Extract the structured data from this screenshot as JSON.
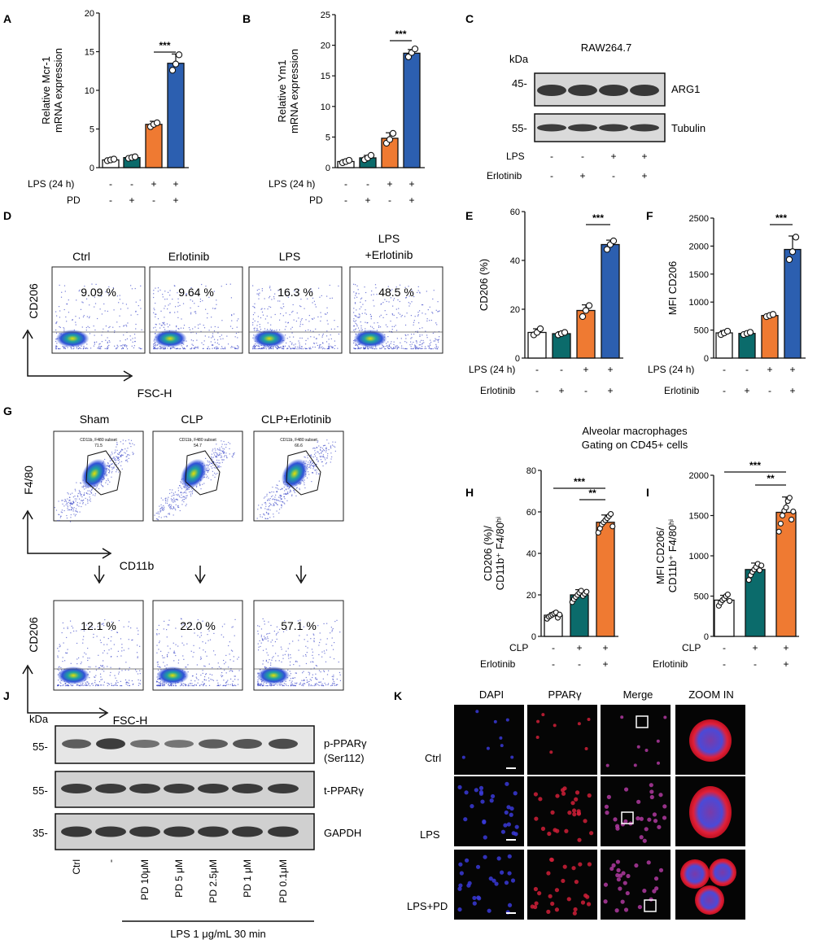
{
  "panel_letters": [
    "A",
    "B",
    "C",
    "D",
    "E",
    "F",
    "G",
    "H",
    "I",
    "J",
    "K"
  ],
  "colors": {
    "white_bar": "#ffffff",
    "teal": "#0b6b6b",
    "orange": "#ef7a32",
    "blue": "#2c5fb0",
    "blot_bg": "#d6d6d6",
    "band": "#2a2a2a",
    "flow_line": "#555555"
  },
  "condition_rows": {
    "lps24": "LPS (24 h)",
    "pd": "PD",
    "erlotinib": "Erlotinib",
    "cl_p": "CLP",
    "lps": "LPS",
    "signs_ab": [
      [
        "-",
        "-",
        "+",
        "+"
      ],
      [
        "-",
        "+",
        "-",
        "+"
      ]
    ],
    "signs_h": [
      [
        "-",
        "+",
        "+"
      ],
      [
        "-",
        "-",
        "+"
      ]
    ]
  },
  "panelC": {
    "kda": "kDa",
    "cell_line": "RAW264.7",
    "markers": [
      "45-",
      "55-"
    ],
    "bands": [
      "ARG1",
      "Tubulin"
    ]
  },
  "panelD": {
    "titles": [
      "Ctrl",
      "Erlotinib",
      "LPS",
      "LPS\n+Erlotinib"
    ],
    "title_line1": "LPS",
    "title_line2": "+Erlotinib",
    "percents": [
      "9.09  %",
      "9.64  %",
      "16.3  %",
      "48.5  %"
    ],
    "yaxis": "CD206",
    "xaxis": "FSC-H"
  },
  "panelG": {
    "titles": [
      "Sham",
      "CLP",
      "CLP+Erlotinib"
    ],
    "gate_labels": [
      "CD11b, F480 subset\n71.5",
      "CD11b, F480 subset\n54.7",
      "CD11b, F480 subset\n66.6"
    ],
    "gate_text": [
      "CD11b, F480 subset",
      "CD11b, F480 subset",
      "CD11b, F480 subset"
    ],
    "gate_values": [
      "71.5",
      "54.7",
      "66.6"
    ],
    "percents": [
      "12.1  %",
      "22.0  %",
      "57.1  %"
    ],
    "yaxis_top": "F4/80",
    "xaxis_top": "CD11b",
    "yaxis_bottom": "CD206",
    "xaxis_bottom": "FSC-H"
  },
  "alveolar_title": [
    "Alveolar macrophages",
    "Gating on CD45+ cells"
  ],
  "panelJ": {
    "kda": "kDa",
    "markers": [
      "55-",
      "55-",
      "35-"
    ],
    "bands": [
      "p-PPARγ",
      "(Ser112)",
      "t-PPARγ",
      "GAPDH"
    ],
    "lanes": [
      "Ctrl",
      "-",
      "PD 10μM",
      "PD 5 μM",
      "PD 2.5μM",
      "PD 1 μM",
      "PD 0.1μM"
    ],
    "treatment": "LPS  1 μg/mL 30 min"
  },
  "panelK": {
    "columns": [
      "DAPI",
      "PPARγ",
      "Merge",
      "ZOOM IN"
    ],
    "rows": [
      "Ctrl",
      "LPS",
      "LPS+PD"
    ]
  },
  "chart_data": [
    {
      "id": "A",
      "type": "bar",
      "ylabel": "Relative Mcr-1\nmRNA expression",
      "ylim": [
        0,
        20
      ],
      "yticks": [
        0,
        5,
        10,
        15,
        20
      ],
      "values": [
        1.0,
        1.3,
        5.6,
        13.5
      ],
      "errors": [
        0.2,
        0.2,
        0.4,
        1.2
      ],
      "points": [
        [
          0.9,
          1.0,
          1.1
        ],
        [
          1.2,
          1.3,
          1.4
        ],
        [
          5.3,
          5.6,
          5.8
        ],
        [
          12.6,
          13.4,
          14.6
        ]
      ],
      "significance": [
        "***"
      ]
    },
    {
      "id": "B",
      "type": "bar",
      "ylabel": "Relative Ym1\nmRNA expression",
      "ylim": [
        0,
        25
      ],
      "yticks": [
        0,
        5,
        10,
        15,
        20,
        25
      ],
      "values": [
        1.0,
        1.6,
        4.8,
        18.7
      ],
      "errors": [
        0.3,
        0.4,
        0.9,
        0.6
      ],
      "points": [
        [
          0.8,
          1.0,
          1.2
        ],
        [
          1.3,
          1.6,
          2.0
        ],
        [
          4.0,
          4.6,
          5.6
        ],
        [
          18.1,
          18.8,
          19.4
        ]
      ],
      "significance": [
        "***"
      ]
    },
    {
      "id": "E",
      "type": "bar",
      "ylabel": "CD206  (%)",
      "ylim": [
        0,
        60
      ],
      "yticks": [
        0,
        20,
        40,
        60
      ],
      "values": [
        10.5,
        10.0,
        19.5,
        46.5
      ],
      "errors": [
        1.5,
        0.8,
        2.3,
        1.8
      ],
      "points": [
        [
          9.5,
          10.5,
          12
        ],
        [
          9.5,
          10,
          10.5
        ],
        [
          17,
          19.5,
          21.5
        ],
        [
          44.5,
          46.5,
          48
        ]
      ],
      "significance": [
        "***"
      ]
    },
    {
      "id": "F",
      "type": "bar",
      "ylabel": "MFI CD206",
      "ylim": [
        0,
        2500
      ],
      "yticks": [
        0,
        500,
        1000,
        1500,
        2000,
        2500
      ],
      "values": [
        450,
        440,
        760,
        1940
      ],
      "errors": [
        40,
        25,
        30,
        240
      ],
      "points": [
        [
          420,
          450,
          480
        ],
        [
          420,
          440,
          460
        ],
        [
          740,
          760,
          780
        ],
        [
          1760,
          1900,
          2160
        ]
      ],
      "significance": [
        "***"
      ]
    },
    {
      "id": "H",
      "type": "bar",
      "ylabel": "CD206 (%)/\nCD11b⁺ F4/80ʰⁱ",
      "ylim": [
        0,
        80
      ],
      "yticks": [
        0,
        20,
        40,
        60,
        80
      ],
      "values": [
        10.2,
        20.0,
        55.0
      ],
      "errors": [
        1.2,
        2.5,
        3.5
      ],
      "points": [
        [
          8.5,
          9.5,
          10,
          10.5,
          11,
          11.5,
          9,
          10.5
        ],
        [
          16.5,
          18,
          19,
          20,
          21,
          22,
          19.5,
          20.5,
          21.5
        ],
        [
          50,
          52,
          54,
          55,
          56,
          57,
          58,
          59,
          53
        ]
      ],
      "significance": [
        "***",
        "**"
      ]
    },
    {
      "id": "I",
      "type": "bar",
      "ylabel": "MFI CD206/\nCD11b⁺ F4/80ʰⁱ",
      "ylim": [
        0,
        2000
      ],
      "yticks": [
        0,
        500,
        1000,
        1500,
        2000
      ],
      "values": [
        450,
        830,
        1540
      ],
      "errors": [
        60,
        80,
        190
      ],
      "points": [
        [
          380,
          420,
          450,
          470,
          500,
          520,
          440
        ],
        [
          700,
          760,
          800,
          830,
          860,
          900,
          820,
          880
        ],
        [
          1300,
          1400,
          1500,
          1560,
          1600,
          1680,
          1720,
          1450,
          1550
        ]
      ],
      "significance": [
        "***",
        "**"
      ]
    }
  ]
}
